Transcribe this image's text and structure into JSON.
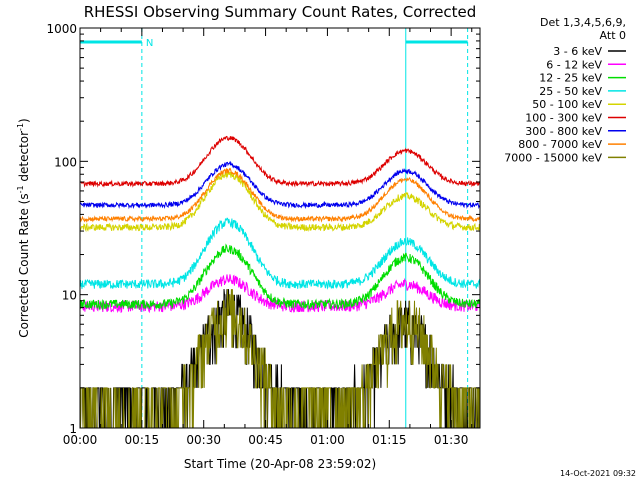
{
  "chart_data": {
    "type": "line",
    "title": "RHESSI Observing Summary Count Rates, Corrected",
    "xlabel": "Start Time (20-Apr-08 23:59:02)",
    "ylabel_parts": [
      "Corrected Count Rate (s",
      "-1",
      " detector",
      "-1",
      ")"
    ],
    "ylabel": "Corrected Count Rate (s-1 detector-1)",
    "yscale": "log",
    "xlim_minutes": [
      0,
      97
    ],
    "ylim": [
      1,
      1000
    ],
    "x_ticks": [
      {
        "m": 0,
        "label": "00:00"
      },
      {
        "m": 15,
        "label": "00:15"
      },
      {
        "m": 30,
        "label": "00:30"
      },
      {
        "m": 45,
        "label": "00:45"
      },
      {
        "m": 60,
        "label": "01:00"
      },
      {
        "m": 75,
        "label": "01:15"
      },
      {
        "m": 90,
        "label": "01:30"
      }
    ],
    "y_ticks": [
      {
        "v": 1,
        "label": "1"
      },
      {
        "v": 10,
        "label": "10"
      },
      {
        "v": 100,
        "label": "100"
      },
      {
        "v": 1000,
        "label": "1000"
      }
    ],
    "legend_header": [
      "Det 1,3,4,5,6,9,",
      "Att 0"
    ],
    "legend_position": "right",
    "series": [
      {
        "name": "3 - 6 keV",
        "color": "#000000",
        "baseline": 1.6,
        "peaks": [
          7.5,
          6.0
        ],
        "noise": 0.5
      },
      {
        "name": "6 - 12 keV",
        "color": "#ff00ff",
        "baseline": 8.2,
        "peaks": [
          13,
          12
        ],
        "noise": 0.1
      },
      {
        "name": "12 - 25 keV",
        "color": "#00dd00",
        "baseline": 8.5,
        "peaks": [
          22,
          19
        ],
        "noise": 0.08
      },
      {
        "name": "25 - 50 keV",
        "color": "#00e5e5",
        "baseline": 12,
        "peaks": [
          35,
          25
        ],
        "noise": 0.08
      },
      {
        "name": "50 - 100 keV",
        "color": "#d4d400",
        "baseline": 32,
        "peaks": [
          80,
          55
        ],
        "noise": 0.06
      },
      {
        "name": "100 - 300 keV",
        "color": "#dd0000",
        "baseline": 68,
        "peaks": [
          150,
          120
        ],
        "noise": 0.04
      },
      {
        "name": "300 - 800 keV",
        "color": "#0000ee",
        "baseline": 47,
        "peaks": [
          95,
          85
        ],
        "noise": 0.04
      },
      {
        "name": "800 - 7000 keV",
        "color": "#ff8000",
        "baseline": 37,
        "peaks": [
          85,
          73
        ],
        "noise": 0.04
      },
      {
        "name": "7000 - 15000 keV",
        "color": "#808000",
        "baseline": 1.5,
        "peaks": [
          7.5,
          6.5
        ],
        "noise": 0.5
      }
    ],
    "peak_times_minutes": [
      36,
      79
    ],
    "saa_intervals_minutes": [
      [
        0,
        15
      ],
      [
        79,
        94
      ]
    ],
    "flag_label": "N"
  },
  "timestamp": "14-Oct-2021 09:32",
  "colors": {
    "axes": "#000000",
    "flag": "#00e5e5",
    "background": "#ffffff"
  }
}
